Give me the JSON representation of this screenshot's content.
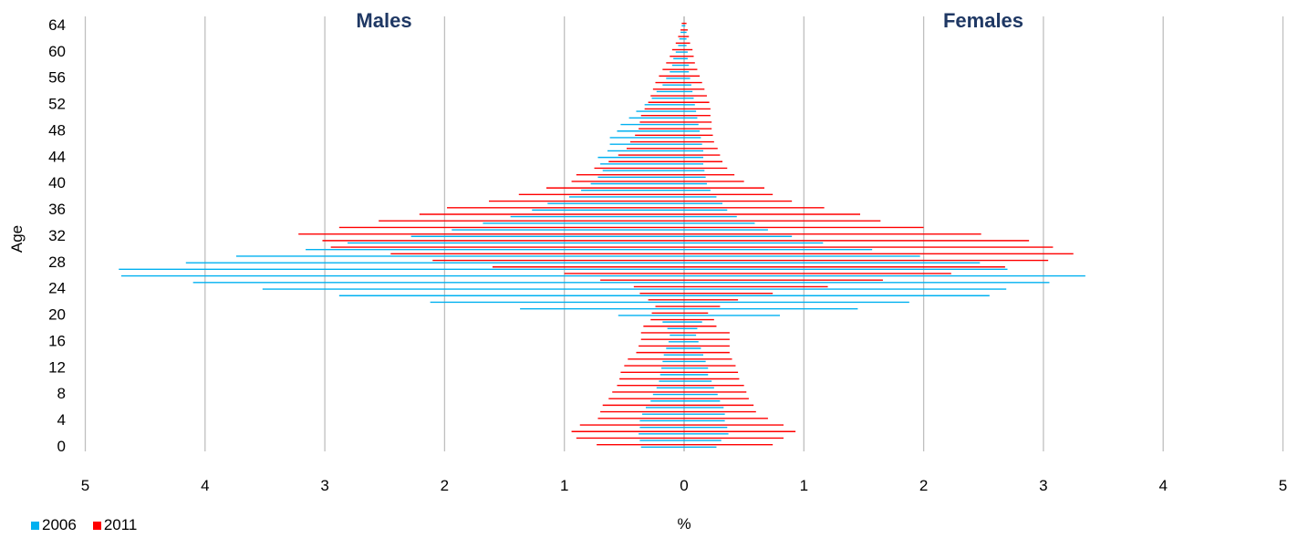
{
  "chart_data": {
    "type": "bar",
    "subtype": "population-pyramid",
    "ylabel": "Age",
    "xlabel": "%",
    "panel_labels": {
      "left": "Males",
      "right": "Females"
    },
    "xlim": [
      -5,
      5
    ],
    "ylim": [
      0,
      64
    ],
    "x_ticks": [
      "5",
      "4",
      "3",
      "2",
      "1",
      "0",
      "1",
      "2",
      "3",
      "4",
      "5"
    ],
    "y_ticks": [
      0,
      4,
      8,
      12,
      16,
      20,
      24,
      28,
      32,
      36,
      40,
      44,
      48,
      52,
      56,
      60,
      64
    ],
    "grid": "vertical",
    "legend_position": "bottom-left",
    "series": [
      {
        "name": "2006",
        "color": "#00b0f0",
        "males": [
          0.36,
          0.37,
          0.38,
          0.37,
          0.37,
          0.35,
          0.32,
          0.28,
          0.26,
          0.23,
          0.21,
          0.2,
          0.19,
          0.18,
          0.17,
          0.15,
          0.13,
          0.12,
          0.14,
          0.18,
          0.55,
          1.37,
          2.12,
          2.88,
          3.52,
          4.1,
          4.7,
          4.72,
          4.16,
          3.74,
          3.16,
          2.81,
          2.28,
          1.94,
          1.68,
          1.45,
          1.27,
          1.14,
          0.96,
          0.86,
          0.78,
          0.72,
          0.68,
          0.7,
          0.72,
          0.64,
          0.62,
          0.62,
          0.56,
          0.53,
          0.46,
          0.4,
          0.33,
          0.27,
          0.23,
          0.18,
          0.15,
          0.12,
          0.1,
          0.09,
          0.07,
          0.05,
          0.04,
          0.03,
          0.02
        ],
        "females": [
          0.27,
          0.31,
          0.37,
          0.36,
          0.34,
          0.34,
          0.33,
          0.3,
          0.28,
          0.25,
          0.23,
          0.2,
          0.2,
          0.18,
          0.16,
          0.14,
          0.12,
          0.1,
          0.11,
          0.15,
          0.8,
          1.45,
          1.88,
          2.55,
          2.69,
          3.05,
          3.35,
          2.7,
          2.47,
          1.97,
          1.57,
          1.16,
          0.9,
          0.7,
          0.59,
          0.44,
          0.36,
          0.32,
          0.27,
          0.22,
          0.19,
          0.18,
          0.17,
          0.16,
          0.16,
          0.16,
          0.15,
          0.14,
          0.13,
          0.12,
          0.11,
          0.1,
          0.09,
          0.08,
          0.07,
          0.06,
          0.05,
          0.04,
          0.04,
          0.03,
          0.03,
          0.02,
          0.02,
          0.02,
          0.01
        ]
      },
      {
        "name": "2011",
        "color": "#ff0000",
        "males": [
          0.73,
          0.9,
          0.94,
          0.87,
          0.72,
          0.7,
          0.68,
          0.63,
          0.6,
          0.56,
          0.54,
          0.53,
          0.5,
          0.47,
          0.4,
          0.38,
          0.36,
          0.36,
          0.34,
          0.28,
          0.27,
          0.24,
          0.3,
          0.37,
          0.42,
          0.7,
          1.0,
          1.6,
          2.1,
          2.45,
          2.95,
          3.02,
          3.22,
          2.88,
          2.55,
          2.21,
          1.98,
          1.63,
          1.38,
          1.15,
          0.94,
          0.9,
          0.75,
          0.63,
          0.55,
          0.48,
          0.45,
          0.41,
          0.38,
          0.37,
          0.36,
          0.33,
          0.3,
          0.28,
          0.26,
          0.24,
          0.21,
          0.18,
          0.15,
          0.12,
          0.1,
          0.07,
          0.05,
          0.03,
          0.02
        ],
        "females": [
          0.74,
          0.83,
          0.93,
          0.83,
          0.7,
          0.6,
          0.58,
          0.54,
          0.52,
          0.5,
          0.46,
          0.45,
          0.43,
          0.4,
          0.38,
          0.38,
          0.38,
          0.38,
          0.27,
          0.25,
          0.2,
          0.3,
          0.45,
          0.74,
          1.2,
          1.66,
          2.23,
          2.68,
          3.04,
          3.25,
          3.08,
          2.88,
          2.48,
          2.0,
          1.64,
          1.47,
          1.17,
          0.9,
          0.74,
          0.67,
          0.5,
          0.42,
          0.36,
          0.32,
          0.3,
          0.28,
          0.25,
          0.24,
          0.23,
          0.23,
          0.22,
          0.22,
          0.21,
          0.19,
          0.17,
          0.15,
          0.13,
          0.11,
          0.09,
          0.08,
          0.07,
          0.05,
          0.04,
          0.03,
          0.02
        ]
      }
    ]
  }
}
